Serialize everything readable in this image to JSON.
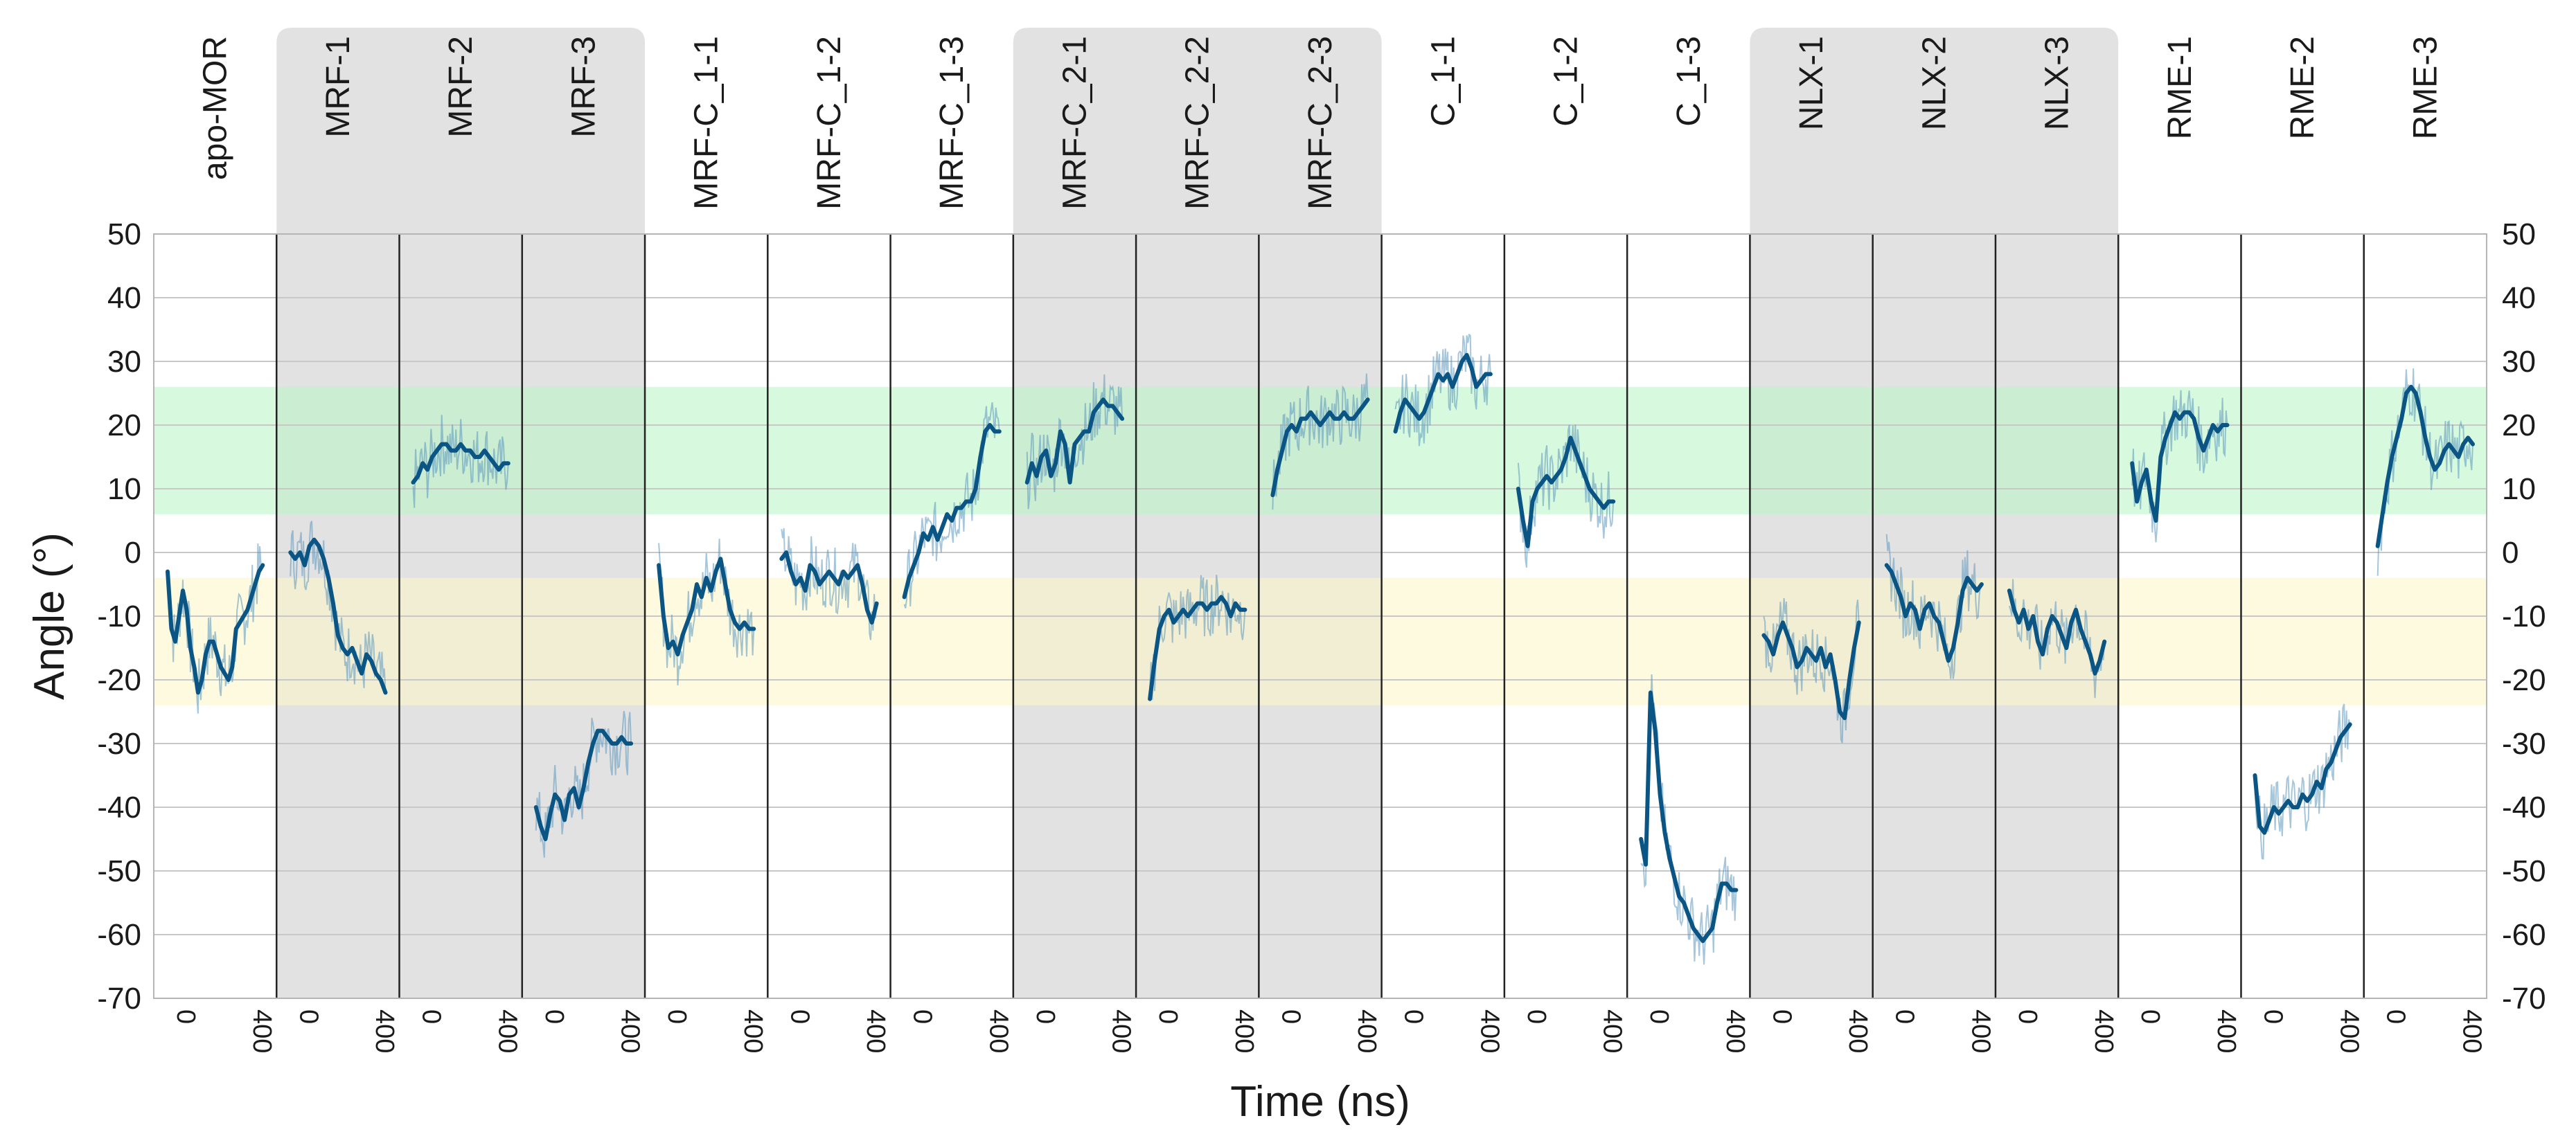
{
  "chart_data": {
    "type": "line",
    "title": "",
    "xlabel": "Time (ns)",
    "ylabel": "Angle (°)",
    "ylim": [
      -70,
      50
    ],
    "yticks": [
      50,
      40,
      30,
      20,
      10,
      0,
      -10,
      -20,
      -30,
      -40,
      -50,
      -60,
      -70
    ],
    "panel_xlim": [
      0,
      500
    ],
    "panel_xticks": [
      "0",
      "400"
    ],
    "grid": true,
    "colors": {
      "mean_line": "#0b5584",
      "raw_trace": "#5b97bd",
      "panel_shade": "#e2e2e2",
      "green_band": "#bdf5c8",
      "yellow_band": "#fbf7c9"
    },
    "bands": [
      {
        "range": [
          6,
          26
        ],
        "color": "#bdf5c8"
      },
      {
        "range": [
          -24,
          -4
        ],
        "color": "#fbf7c9"
      }
    ],
    "shaded_groups": [
      "MRF",
      "MRF-C_2",
      "NLX"
    ],
    "panels": [
      {
        "name": "apo-MOR",
        "group": "apo",
        "x": [
          0,
          20,
          40,
          60,
          80,
          100,
          120,
          140,
          160,
          180,
          200,
          220,
          240,
          260,
          280,
          300,
          320,
          340,
          360,
          380,
          400,
          420,
          440,
          460,
          480,
          500
        ],
        "y": [
          -3,
          -12,
          -14,
          -10,
          -6,
          -9,
          -15,
          -18,
          -22,
          -20,
          -16,
          -14,
          -14,
          -16,
          -18,
          -19,
          -20,
          -18,
          -12,
          -11,
          -10,
          -9,
          -7,
          -5,
          -3,
          -2
        ]
      },
      {
        "name": "MRF-1",
        "group": "MRF",
        "x": [
          0,
          25,
          50,
          75,
          100,
          125,
          150,
          175,
          200,
          225,
          250,
          275,
          300,
          325,
          350,
          375,
          400,
          425,
          450,
          475,
          500
        ],
        "y": [
          0,
          -1,
          0,
          -2,
          1,
          2,
          1,
          -1,
          -4,
          -8,
          -13,
          -15,
          -16,
          -15,
          -17,
          -19,
          -16,
          -17,
          -19,
          -20,
          -22
        ]
      },
      {
        "name": "MRF-2",
        "group": "MRF",
        "x": [
          0,
          25,
          50,
          75,
          100,
          125,
          150,
          175,
          200,
          225,
          250,
          275,
          300,
          325,
          350,
          375,
          400,
          425,
          450,
          475,
          500
        ],
        "y": [
          11,
          12,
          14,
          13,
          15,
          16,
          17,
          17,
          16,
          16,
          17,
          16,
          16,
          15,
          15,
          16,
          15,
          14,
          13,
          14,
          14
        ]
      },
      {
        "name": "MRF-3",
        "group": "MRF",
        "x": [
          0,
          25,
          50,
          75,
          100,
          125,
          150,
          175,
          200,
          225,
          250,
          275,
          300,
          325,
          350,
          375,
          400,
          425,
          450,
          475,
          500
        ],
        "y": [
          -40,
          -43,
          -45,
          -41,
          -38,
          -39,
          -42,
          -38,
          -37,
          -40,
          -37,
          -33,
          -30,
          -28,
          -28,
          -29,
          -30,
          -30,
          -29,
          -30,
          -30
        ]
      },
      {
        "name": "MRF-C_1-1",
        "group": "MRF-C_1",
        "x": [
          0,
          25,
          50,
          75,
          100,
          125,
          150,
          175,
          200,
          225,
          250,
          275,
          300,
          325,
          350,
          375,
          400,
          425,
          450,
          475,
          500
        ],
        "y": [
          -2,
          -10,
          -15,
          -14,
          -16,
          -13,
          -11,
          -9,
          -5,
          -7,
          -4,
          -6,
          -3,
          -1,
          -5,
          -9,
          -11,
          -12,
          -11,
          -12,
          -12
        ]
      },
      {
        "name": "MRF-C_1-2",
        "group": "MRF-C_1",
        "x": [
          0,
          25,
          50,
          75,
          100,
          125,
          150,
          175,
          200,
          225,
          250,
          275,
          300,
          325,
          350,
          375,
          400,
          425,
          450,
          475,
          500
        ],
        "y": [
          -1,
          0,
          -3,
          -5,
          -4,
          -6,
          -2,
          -3,
          -5,
          -4,
          -3,
          -4,
          -5,
          -3,
          -4,
          -3,
          -2,
          -5,
          -9,
          -11,
          -8
        ]
      },
      {
        "name": "MRF-C_1-3",
        "group": "MRF-C_1",
        "x": [
          0,
          25,
          50,
          75,
          100,
          125,
          150,
          175,
          200,
          225,
          250,
          275,
          300,
          325,
          350,
          375,
          400,
          425,
          450,
          475,
          500
        ],
        "y": [
          -7,
          -4,
          -2,
          0,
          3,
          2,
          4,
          2,
          4,
          6,
          5,
          7,
          7,
          8,
          8,
          10,
          15,
          19,
          20,
          19,
          19
        ]
      },
      {
        "name": "MRF-C_2-1",
        "group": "MRF-C_2",
        "x": [
          0,
          25,
          50,
          75,
          100,
          125,
          150,
          175,
          200,
          225,
          250,
          275,
          300,
          325,
          350,
          375,
          400,
          425,
          450,
          475,
          500
        ],
        "y": [
          11,
          14,
          12,
          15,
          16,
          12,
          14,
          19,
          17,
          11,
          17,
          18,
          19,
          19,
          22,
          23,
          24,
          23,
          23,
          22,
          21
        ]
      },
      {
        "name": "MRF-C_2-2",
        "group": "MRF-C_2",
        "x": [
          0,
          25,
          50,
          75,
          100,
          125,
          150,
          175,
          200,
          225,
          250,
          275,
          300,
          325,
          350,
          375,
          400,
          425,
          450,
          475,
          500
        ],
        "y": [
          -23,
          -17,
          -12,
          -10,
          -9,
          -11,
          -10,
          -9,
          -10,
          -9,
          -8,
          -8,
          -9,
          -8,
          -8,
          -7,
          -8,
          -10,
          -8,
          -9,
          -9
        ]
      },
      {
        "name": "MRF-C_2-3",
        "group": "MRF-C_2",
        "x": [
          0,
          25,
          50,
          75,
          100,
          125,
          150,
          175,
          200,
          225,
          250,
          275,
          300,
          325,
          350,
          375,
          400,
          425,
          450,
          475,
          500
        ],
        "y": [
          9,
          13,
          16,
          19,
          20,
          19,
          21,
          21,
          22,
          21,
          20,
          21,
          22,
          21,
          21,
          22,
          21,
          21,
          22,
          23,
          24
        ]
      },
      {
        "name": "C_1-1",
        "group": "C_1",
        "x": [
          0,
          25,
          50,
          75,
          100,
          125,
          150,
          175,
          200,
          225,
          250,
          275,
          300,
          325,
          350,
          375,
          400,
          425,
          450,
          475,
          500
        ],
        "y": [
          19,
          22,
          24,
          23,
          22,
          21,
          22,
          24,
          26,
          28,
          27,
          28,
          26,
          28,
          30,
          31,
          29,
          26,
          27,
          28,
          28
        ]
      },
      {
        "name": "C_1-2",
        "group": "C_1",
        "x": [
          0,
          25,
          50,
          75,
          100,
          125,
          150,
          175,
          200,
          225,
          250,
          275,
          300,
          325,
          350,
          375,
          400,
          425,
          450,
          475,
          500
        ],
        "y": [
          10,
          5,
          1,
          8,
          10,
          11,
          12,
          11,
          12,
          13,
          15,
          18,
          16,
          14,
          12,
          10,
          9,
          8,
          7,
          8,
          8
        ]
      },
      {
        "name": "C_1-3",
        "group": "C_1",
        "x": [
          0,
          25,
          50,
          75,
          100,
          125,
          150,
          175,
          200,
          225,
          250,
          275,
          300,
          325,
          350,
          375,
          400,
          425,
          450,
          475,
          500
        ],
        "y": [
          -45,
          -49,
          -22,
          -28,
          -38,
          -44,
          -48,
          -51,
          -54,
          -55,
          -57,
          -59,
          -60,
          -61,
          -60,
          -59,
          -55,
          -52,
          -52,
          -53,
          -53
        ]
      },
      {
        "name": "NLX-1",
        "group": "NLX",
        "x": [
          0,
          25,
          50,
          75,
          100,
          125,
          150,
          175,
          200,
          225,
          250,
          275,
          300,
          325,
          350,
          375,
          400,
          425,
          450,
          475,
          500
        ],
        "y": [
          -13,
          -14,
          -16,
          -13,
          -11,
          -13,
          -15,
          -18,
          -17,
          -15,
          -16,
          -17,
          -15,
          -18,
          -16,
          -20,
          -25,
          -26,
          -20,
          -15,
          -11
        ]
      },
      {
        "name": "NLX-2",
        "group": "NLX",
        "x": [
          0,
          25,
          50,
          75,
          100,
          125,
          150,
          175,
          200,
          225,
          250,
          275,
          300,
          325,
          350,
          375,
          400,
          425,
          450,
          475,
          500
        ],
        "y": [
          -2,
          -3,
          -5,
          -7,
          -10,
          -8,
          -9,
          -12,
          -9,
          -8,
          -10,
          -11,
          -14,
          -17,
          -15,
          -11,
          -6,
          -4,
          -5,
          -6,
          -5
        ]
      },
      {
        "name": "NLX-3",
        "group": "NLX",
        "x": [
          0,
          25,
          50,
          75,
          100,
          125,
          150,
          175,
          200,
          225,
          250,
          275,
          300,
          325,
          350,
          375,
          400,
          425,
          450,
          475,
          500
        ],
        "y": [
          -6,
          -9,
          -11,
          -9,
          -12,
          -10,
          -14,
          -16,
          -12,
          -10,
          -11,
          -13,
          -15,
          -11,
          -9,
          -12,
          -14,
          -16,
          -19,
          -17,
          -14
        ]
      },
      {
        "name": "RME-1",
        "group": "RME",
        "x": [
          0,
          25,
          50,
          75,
          100,
          125,
          150,
          175,
          200,
          225,
          250,
          275,
          300,
          325,
          350,
          375,
          400,
          425,
          450,
          475,
          500
        ],
        "y": [
          14,
          8,
          11,
          13,
          8,
          5,
          15,
          18,
          20,
          22,
          21,
          22,
          22,
          21,
          18,
          16,
          18,
          20,
          19,
          20,
          20
        ]
      },
      {
        "name": "RME-2",
        "group": "RME",
        "x": [
          0,
          25,
          50,
          75,
          100,
          125,
          150,
          175,
          200,
          225,
          250,
          275,
          300,
          325,
          350,
          375,
          400,
          425,
          450,
          475,
          500
        ],
        "y": [
          -35,
          -43,
          -44,
          -42,
          -40,
          -41,
          -40,
          -39,
          -40,
          -40,
          -38,
          -39,
          -38,
          -36,
          -37,
          -34,
          -33,
          -31,
          -29,
          -28,
          -27
        ]
      },
      {
        "name": "RME-3",
        "group": "RME",
        "x": [
          0,
          25,
          50,
          75,
          100,
          125,
          150,
          175,
          200,
          225,
          250,
          275,
          300,
          325,
          350,
          375,
          400,
          425,
          450,
          475,
          500
        ],
        "y": [
          1,
          6,
          11,
          15,
          18,
          21,
          25,
          26,
          25,
          22,
          18,
          15,
          13,
          14,
          16,
          17,
          16,
          15,
          17,
          18,
          17
        ]
      }
    ]
  }
}
